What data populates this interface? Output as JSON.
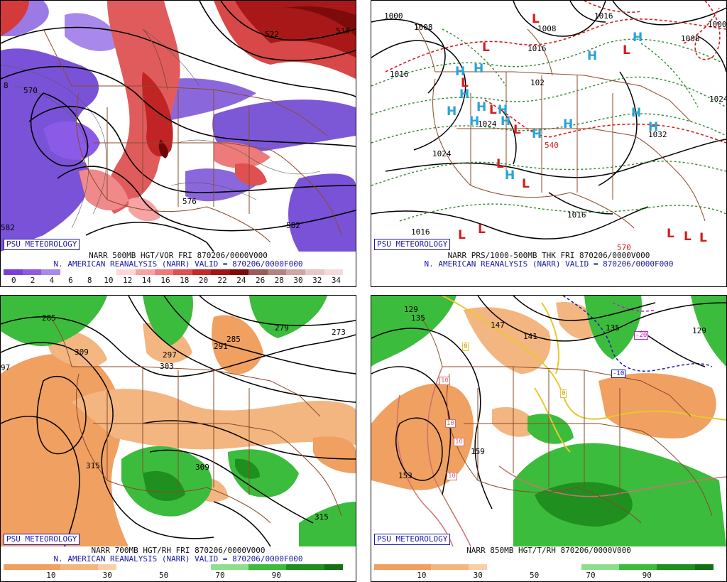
{
  "panels": [
    {
      "id": "p1",
      "badge": "PSU METEOROLOGY",
      "caption1": "NARR 500MB HGT/VOR FRI 870206/0000V000",
      "caption2": "N. AMERICAN REANALYSIS (NARR) VALID = 870206/0000F000",
      "colorbar_colors": [
        "#7a40d6",
        "#8f5ae0",
        "#a98ae8",
        "#ffffff",
        "#ffffff",
        "#ffffff",
        "#ffd6d6",
        "#f7a3a3",
        "#ef7a7a",
        "#e05050",
        "#c42a2a",
        "#a31414",
        "#7d0b0b",
        "#9c5a5a",
        "#b58282",
        "#cfa6a6",
        "#e6c8c8",
        "#f5dada"
      ],
      "colorbar_ticks": [
        "0",
        "2",
        "4",
        "6",
        "8",
        "10",
        "12",
        "14",
        "16",
        "18",
        "20",
        "22",
        "24",
        "26",
        "28",
        "30",
        "32",
        "34"
      ],
      "contour_labels": [
        {
          "text": "570"
        },
        {
          "text": "522"
        },
        {
          "text": "510"
        },
        {
          "text": "576"
        },
        {
          "text": "582"
        },
        {
          "text": "582"
        },
        {
          "text": "8"
        }
      ]
    },
    {
      "id": "p2",
      "badge": "PSU METEOROLOGY",
      "caption1": "NARR PRS/1000-500MB THK FRI 870206/0000V000",
      "caption2": "N. AMERICAN REANALYSIS (NARR) VALID = 870206/0000F000",
      "contour_labels": [
        {
          "text": "1000"
        },
        {
          "text": "1008"
        },
        {
          "text": "1016"
        },
        {
          "text": "1016"
        },
        {
          "text": "1008"
        },
        {
          "text": "1016"
        },
        {
          "text": "1024"
        },
        {
          "text": "1024"
        },
        {
          "text": "1016"
        },
        {
          "text": "1016"
        },
        {
          "text": "1032"
        },
        {
          "text": "1008"
        },
        {
          "text": "1000"
        },
        {
          "text": "1024"
        },
        {
          "text": "540"
        },
        {
          "text": "570"
        },
        {
          "text": "102"
        }
      ],
      "highs_lows": [
        {
          "type": "H"
        },
        {
          "type": "H"
        },
        {
          "type": "H"
        },
        {
          "type": "H"
        },
        {
          "type": "H"
        },
        {
          "type": "H"
        },
        {
          "type": "H"
        },
        {
          "type": "H"
        },
        {
          "type": "H"
        },
        {
          "type": "H"
        },
        {
          "type": "H"
        },
        {
          "type": "H"
        },
        {
          "type": "H"
        },
        {
          "type": "L"
        },
        {
          "type": "L"
        },
        {
          "type": "L"
        },
        {
          "type": "L"
        },
        {
          "type": "L"
        },
        {
          "type": "L"
        },
        {
          "type": "L"
        },
        {
          "type": "L"
        },
        {
          "type": "L"
        },
        {
          "type": "L"
        },
        {
          "type": "L"
        },
        {
          "type": "L"
        },
        {
          "type": "L"
        }
      ]
    },
    {
      "id": "p3",
      "badge": "PSU METEOROLOGY",
      "caption1": "NARR 700MB HGT/RH FRI 870206/0000V000",
      "caption2": "N. AMERICAN REANALYSIS (NARR) VALID = 870206/0000F000",
      "colorbar_colors": [
        "#f0a060",
        "#f0a060",
        "#f0a060",
        "#f3b680",
        "#f3b680",
        "#f7d0a8",
        "#ffffff",
        "#ffffff",
        "#ffffff",
        "#ffffff",
        "#ffffff",
        "#8ede8e",
        "#8ede8e",
        "#3cbc3c",
        "#3cbc3c",
        "#1f8f1f",
        "#1f8f1f",
        "#137013"
      ],
      "colorbar_ticks": [
        "10",
        "30",
        "50",
        "70",
        "90"
      ],
      "contour_labels": [
        {
          "text": "285"
        },
        {
          "text": "309"
        },
        {
          "text": "297"
        },
        {
          "text": "303"
        },
        {
          "text": "291"
        },
        {
          "text": "285"
        },
        {
          "text": "279"
        },
        {
          "text": "273"
        },
        {
          "text": "315"
        },
        {
          "text": "309"
        },
        {
          "text": "315"
        },
        {
          "text": "97"
        }
      ]
    },
    {
      "id": "p4",
      "badge": "PSU METEOROLOGY",
      "caption1": "NARR 850MB HGT/T/RH 870206/0000V000",
      "caption2": "",
      "colorbar_colors": [
        "#f0a060",
        "#f0a060",
        "#f0a060",
        "#f3b680",
        "#f3b680",
        "#f7d0a8",
        "#ffffff",
        "#ffffff",
        "#ffffff",
        "#ffffff",
        "#ffffff",
        "#8ede8e",
        "#8ede8e",
        "#3cbc3c",
        "#3cbc3c",
        "#1f8f1f",
        "#1f8f1f",
        "#137013"
      ],
      "colorbar_ticks": [
        "10",
        "30",
        "50",
        "70",
        "90"
      ],
      "contour_labels": [
        {
          "text": "129"
        },
        {
          "text": "135"
        },
        {
          "text": "147"
        },
        {
          "text": "141"
        },
        {
          "text": "135"
        },
        {
          "text": "129"
        },
        {
          "text": "159"
        },
        {
          "text": "153"
        }
      ],
      "temp_labels": [
        {
          "text": "10"
        },
        {
          "text": "10"
        },
        {
          "text": "10"
        },
        {
          "text": "10"
        },
        {
          "text": "0"
        },
        {
          "text": "0"
        },
        {
          "text": "-10"
        },
        {
          "text": "-20"
        }
      ]
    }
  ]
}
